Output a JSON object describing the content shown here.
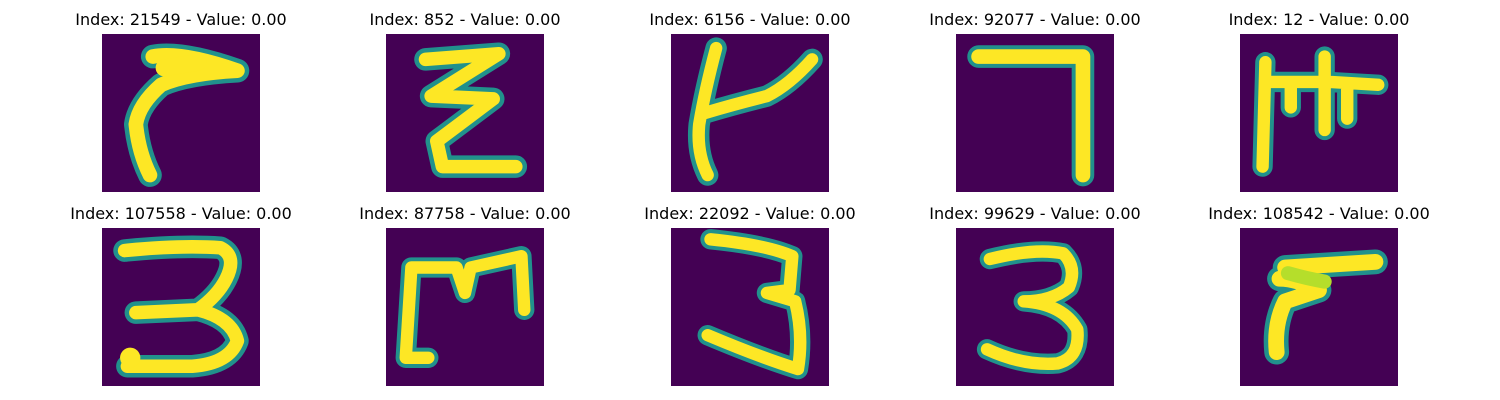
{
  "colors": {
    "background": "#440154",
    "mid": "#21918c",
    "stroke": "#fde725",
    "stroke_soft": "#b5de2b"
  },
  "panels": [
    {
      "title": "Index: 21549 - Value: 0.00",
      "glyph": "hooked-arrow-stroke"
    },
    {
      "title": "Index: 852 - Value: 0.00",
      "glyph": "zigzag-stroke"
    },
    {
      "title": "Index: 6156 - Value: 0.00",
      "glyph": "k-like-stroke"
    },
    {
      "title": "Index: 92077 - Value: 0.00",
      "glyph": "seven-stroke"
    },
    {
      "title": "Index: 12 - Value: 0.00",
      "glyph": "comb-stroke"
    },
    {
      "title": "Index: 107558 - Value: 0.00",
      "glyph": "three-stroke"
    },
    {
      "title": "Index: 87758 - Value: 0.00",
      "glyph": "m-like-stroke"
    },
    {
      "title": "Index: 22092 - Value: 0.00",
      "glyph": "three-stroke"
    },
    {
      "title": "Index: 99629 - Value: 0.00",
      "glyph": "three-stroke"
    },
    {
      "title": "Index: 108542 - Value: 0.00",
      "glyph": "hook-stroke"
    }
  ]
}
